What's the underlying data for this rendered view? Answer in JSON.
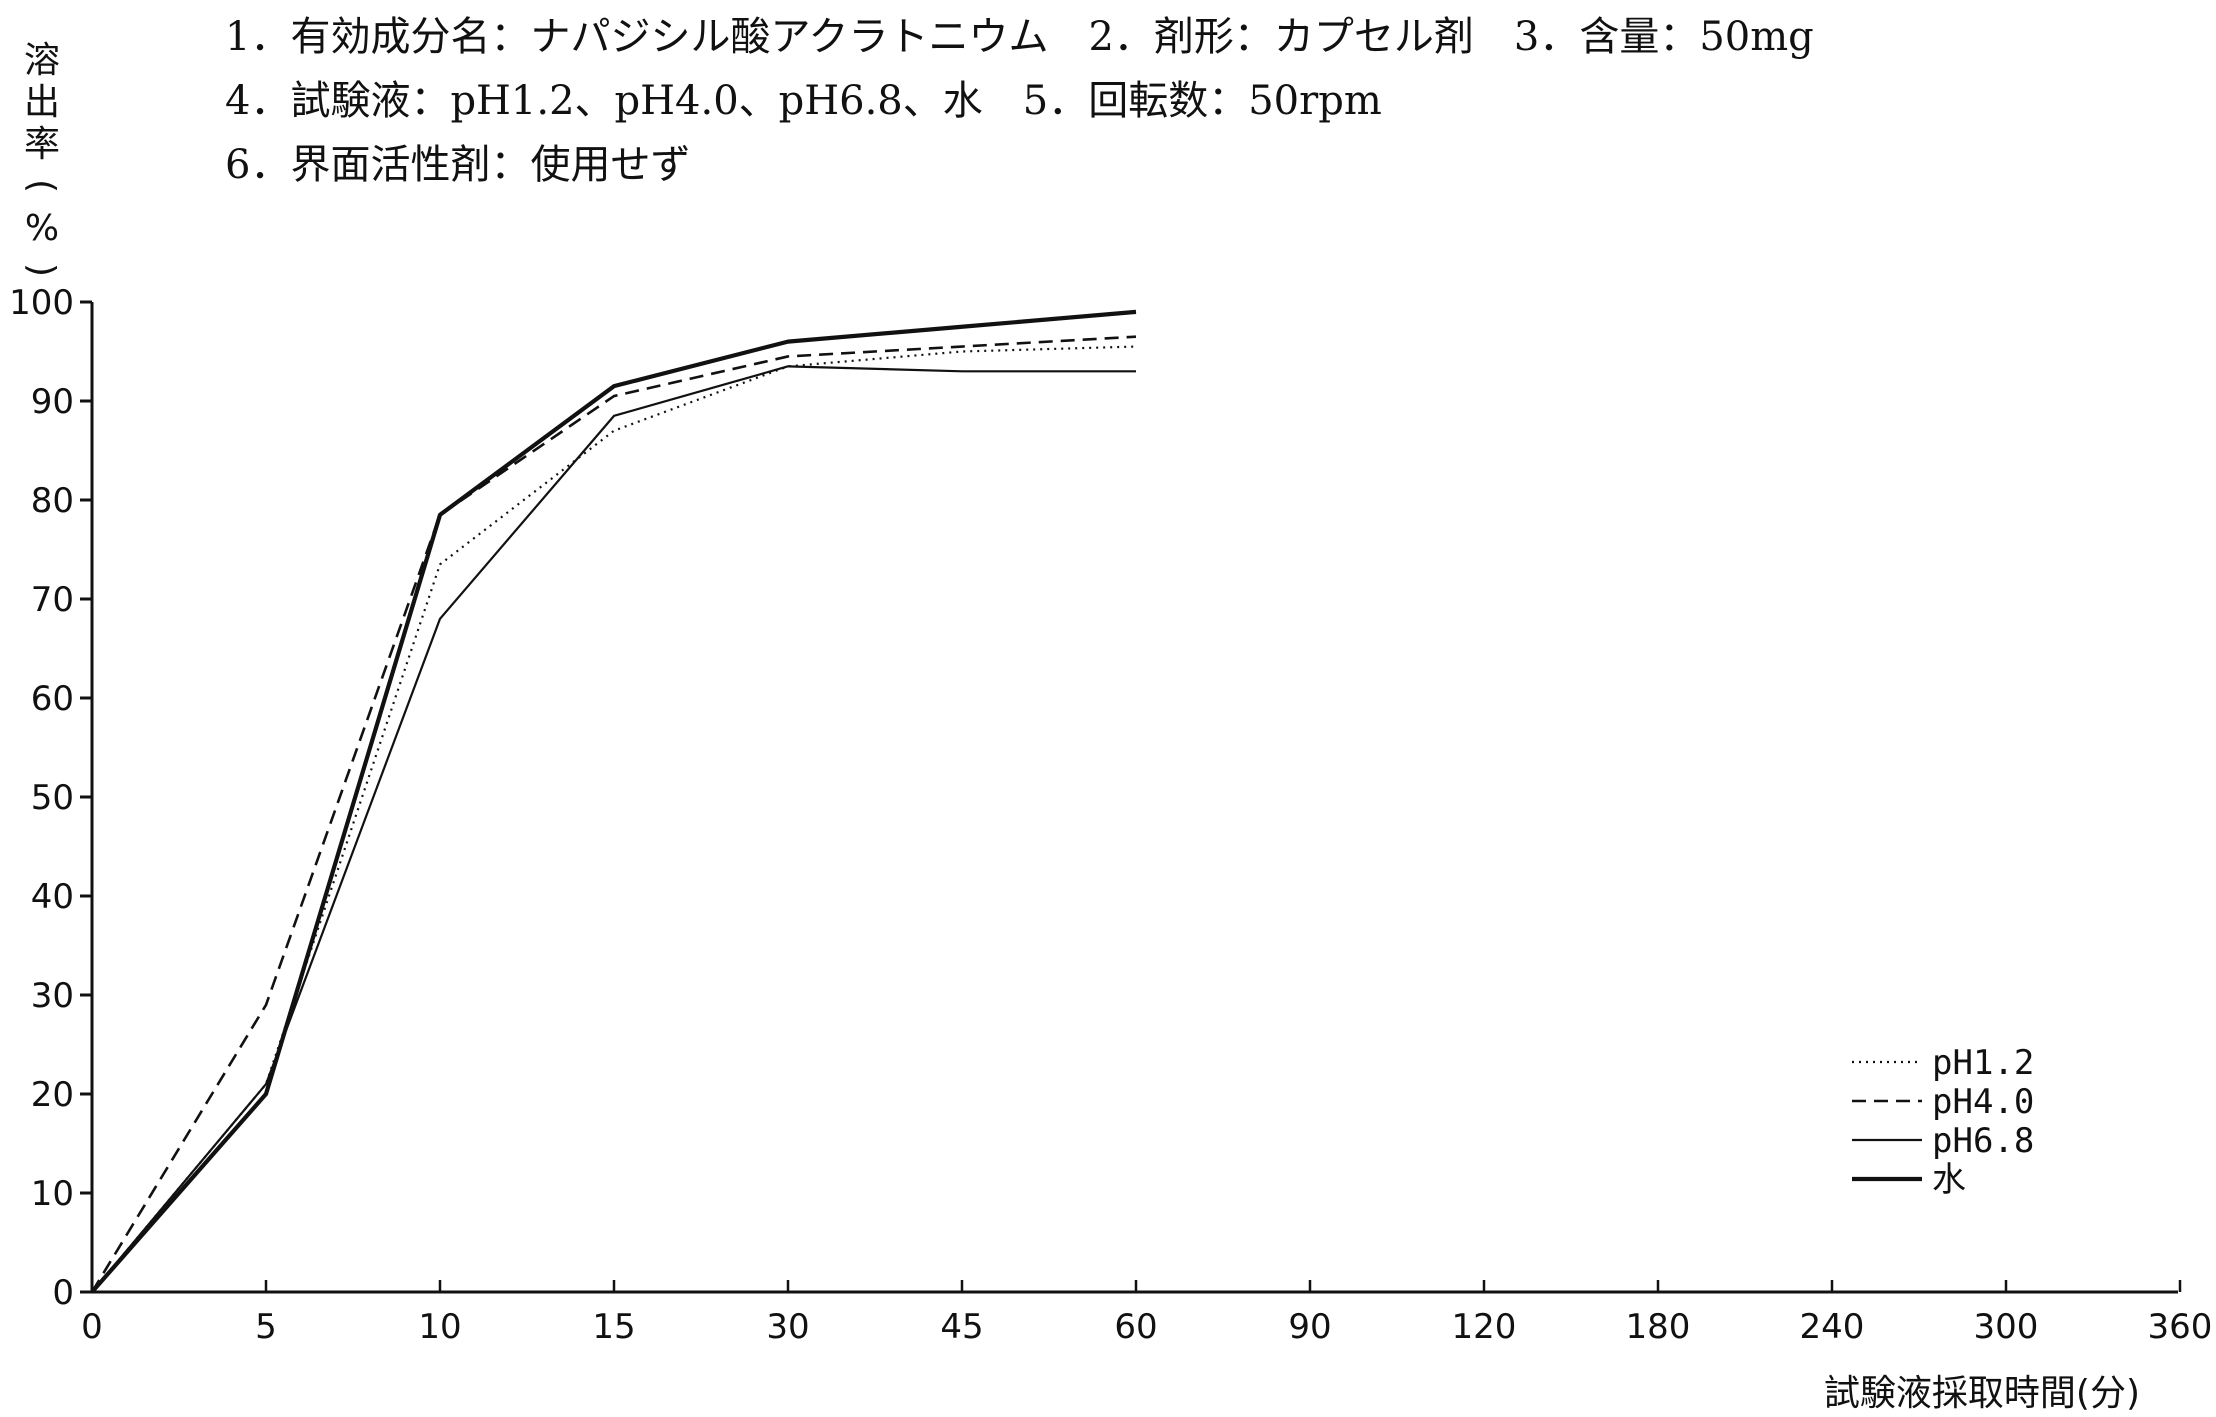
{
  "header": {
    "lines": [
      "1．有効成分名：ナパジシル酸アクラトニウム　2．剤形：カプセル剤　3．含量：50mg",
      "4．試験液：pH1.2、pH4.0、pH6.8、水　5．回転数：50rpm",
      "6．界面活性剤：使用せず"
    ]
  },
  "chart_data": {
    "type": "line",
    "title": "",
    "ylabel": "溶出率(%)",
    "xlabel": "試験液採取時間(分)",
    "categories": [
      "0",
      "5",
      "10",
      "15",
      "30",
      "45",
      "60",
      "90",
      "120",
      "180",
      "240",
      "300",
      "360"
    ],
    "yticks": [
      "0",
      "10",
      "20",
      "30",
      "40",
      "50",
      "60",
      "70",
      "80",
      "90",
      "100"
    ],
    "ylim": [
      0,
      100
    ],
    "x_scale": "categorical, evenly spaced",
    "grid": false,
    "legend_position": "bottom-right",
    "series": [
      {
        "name": "pH1.2",
        "style": "dotted",
        "x": [
          "0",
          "5",
          "10",
          "15",
          "30",
          "45",
          "60"
        ],
        "values": [
          0,
          21,
          73.5,
          87,
          93.5,
          95,
          95.5
        ]
      },
      {
        "name": "pH4.0",
        "style": "dashed",
        "x": [
          "0",
          "5",
          "10",
          "15",
          "30",
          "45",
          "60"
        ],
        "values": [
          0,
          29,
          78.5,
          90.5,
          94.5,
          95.5,
          96.5
        ]
      },
      {
        "name": "pH6.8",
        "style": "thin-solid",
        "x": [
          "0",
          "5",
          "10",
          "15",
          "30",
          "45",
          "60"
        ],
        "values": [
          0,
          21,
          68,
          88.5,
          93.5,
          93,
          93
        ]
      },
      {
        "name": "水",
        "style": "thick-solid",
        "x": [
          "0",
          "5",
          "10",
          "15",
          "30",
          "45",
          "60"
        ],
        "values": [
          0,
          20,
          78.5,
          91.5,
          96,
          97.5,
          99
        ]
      }
    ]
  }
}
